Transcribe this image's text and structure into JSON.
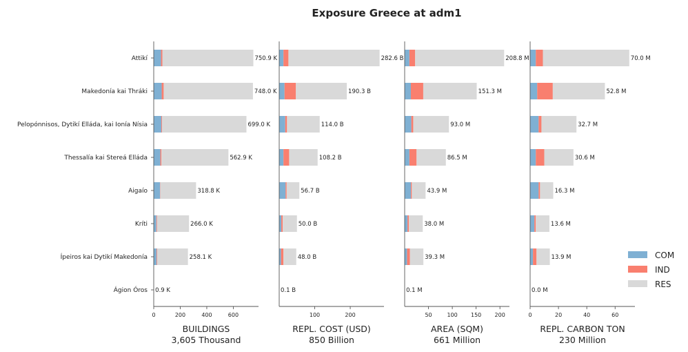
{
  "chart_data": {
    "type": "bar",
    "title": "Exposure Greece at adm1",
    "categories": [
      "Attikí",
      "Makedonía kai Thráki",
      "Pelopónnisos, Dytikí Elláda, kai Ionía Nísia",
      "Thessalía kai Stereá Elláda",
      "Aigaío",
      "Kríti",
      "Ípeiros kai Dytikí Makedonía",
      "Ágion Óros"
    ],
    "legend": {
      "position": "right",
      "entries": [
        "COM",
        "IND",
        "RES"
      ]
    },
    "colors": {
      "COM": "#7fb0d3",
      "IND": "#f97f6f",
      "RES": "#d9d9d9"
    },
    "panels": [
      {
        "xlabel": "BUILDINGS",
        "total_label": "3,605 Thousand",
        "xlim": [
          0,
          790
        ],
        "ticks": [
          0,
          200,
          400,
          600
        ],
        "value_labels": [
          "750.9 K",
          "748.0 K",
          "699.0 K",
          "562.9 K",
          "318.8 K",
          "266.0 K",
          "258.1 K",
          "0.9 K"
        ],
        "series": [
          {
            "name": "COM",
            "values": [
              55,
              60,
              57,
              50,
              48,
              20,
              22,
              0.5
            ]
          },
          {
            "name": "IND",
            "values": [
              10,
              15,
              5,
              8,
              2,
              5,
              4,
              0.1
            ]
          },
          {
            "name": "RES",
            "values": [
              686,
              673,
              637,
              505,
              269,
              241,
              232,
              0.3
            ]
          }
        ]
      },
      {
        "xlabel": "REPL. COST (USD)",
        "total_label": "850 Billion",
        "xlim": [
          0,
          295
        ],
        "ticks": [
          100,
          200
        ],
        "value_labels": [
          "282.6 B",
          "190.3 B",
          "114.0 B",
          "108.2 B",
          "56.7 B",
          "50.0 B",
          "48.0 B",
          "0.1 B"
        ],
        "series": [
          {
            "name": "COM",
            "values": [
              12,
              15,
              17,
              12,
              18,
              6,
              5,
              0.05
            ]
          },
          {
            "name": "IND",
            "values": [
              14,
              32,
              5,
              16,
              3,
              4,
              7,
              0.02
            ]
          },
          {
            "name": "RES",
            "values": [
              256.6,
              143.3,
              92,
              80.2,
              35.7,
              40,
              36,
              0.03
            ]
          }
        ]
      },
      {
        "xlabel": "AREA (SQM)",
        "total_label": "661 Million",
        "xlim": [
          0,
          220
        ],
        "ticks": [
          50,
          100,
          150,
          200
        ],
        "value_labels": [
          "208.8 M",
          "151.3 M",
          "93.0 M",
          "86.5 M",
          "43.9 M",
          "38.0 M",
          "39.3 M",
          "0.1 M"
        ],
        "series": [
          {
            "name": "COM",
            "values": [
              10,
              13,
              14,
              10,
              13,
              6,
              5,
              0.05
            ]
          },
          {
            "name": "IND",
            "values": [
              12,
              26,
              4,
              15,
              2,
              3,
              6,
              0.02
            ]
          },
          {
            "name": "RES",
            "values": [
              186.8,
              112.3,
              75,
              61.5,
              28.9,
              29,
              28.3,
              0.03
            ]
          }
        ]
      },
      {
        "xlabel": "REPL. CARBON TON",
        "total_label": "230 Million",
        "xlim": [
          0,
          74
        ],
        "ticks": [
          0,
          20,
          40,
          60
        ],
        "value_labels": [
          "70.0 M",
          "52.8 M",
          "32.7 M",
          "30.6 M",
          "16.3 M",
          "13.6 M",
          "13.9 M",
          "0.0 M"
        ],
        "series": [
          {
            "name": "COM",
            "values": [
              4,
              5,
              6,
              4,
              6,
              3,
              2,
              0.01
            ]
          },
          {
            "name": "IND",
            "values": [
              5,
              11,
              2,
              6,
              1,
              1,
              2.5,
              0.005
            ]
          },
          {
            "name": "RES",
            "values": [
              61,
              36.8,
              24.7,
              20.6,
              9.3,
              9.6,
              9.4,
              0.005
            ]
          }
        ]
      }
    ]
  }
}
